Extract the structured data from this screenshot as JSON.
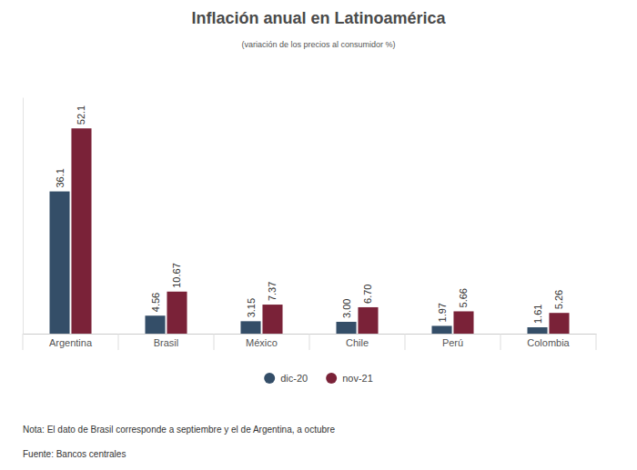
{
  "chart_data": {
    "type": "bar",
    "title": "Inflación anual en Latinoamérica",
    "subtitle": "(variación de los precios al consumidor %)",
    "categories": [
      "Argentina",
      "Brasil",
      "México",
      "Chile",
      "Perú",
      "Colombia"
    ],
    "series": [
      {
        "name": "dic-20",
        "color": "#344e68",
        "values": [
          36.1,
          4.56,
          3.15,
          3.0,
          1.97,
          1.61
        ],
        "value_labels": [
          "36.1",
          "4.56",
          "3.15",
          "3.00",
          "1.97",
          "1.61"
        ]
      },
      {
        "name": "nov-21",
        "color": "#7a2238",
        "values": [
          52.1,
          10.67,
          7.37,
          6.7,
          5.66,
          5.26
        ],
        "value_labels": [
          "52.1",
          "10.67",
          "7.37",
          "6.70",
          "5.66",
          "5.26"
        ]
      }
    ],
    "ylim": [
      0,
      60
    ],
    "yticks": [
      0,
      60
    ],
    "grid": false,
    "legend": "bottom",
    "data_labels": true,
    "tick_labels": "x",
    "annotations": [
      "Nota: El dato de Brasil corresponde a septiembre y el de Argentina, a octubre",
      "Fuente: Bancos centrales"
    ]
  }
}
